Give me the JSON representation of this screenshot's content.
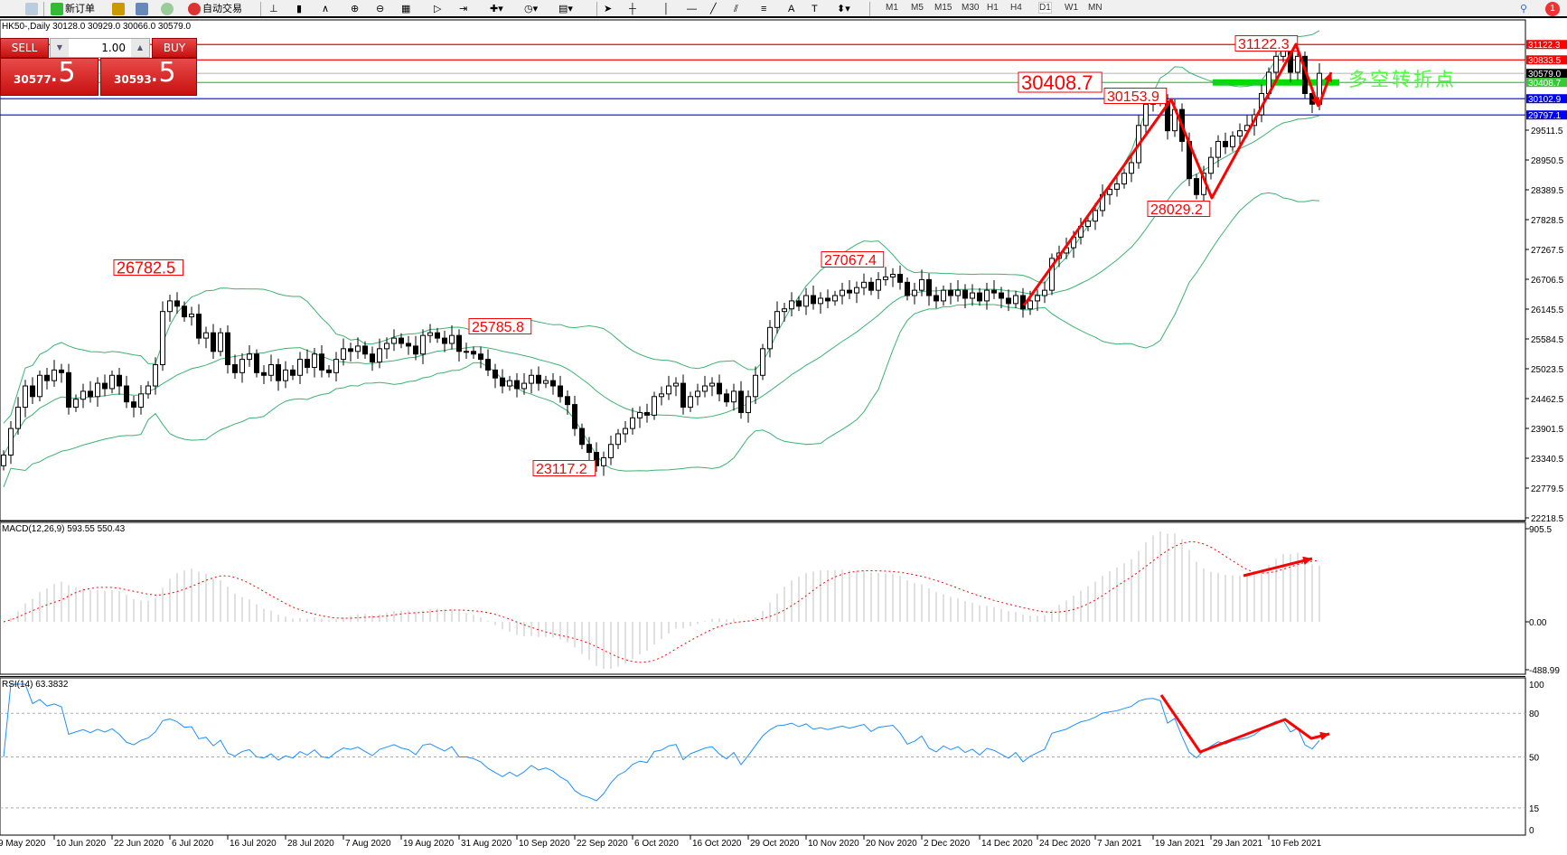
{
  "toolbar": {
    "new_order": "新订单",
    "auto_trading": "自动交易",
    "timeframes": [
      "M1",
      "M5",
      "M15",
      "M30",
      "H1",
      "H4",
      "D1",
      "W1",
      "MN"
    ],
    "active_timeframe": "D1",
    "notification_count": "1"
  },
  "chart_title": "HK50-,Daily  30128.0 30929.0 30066.0 30579.0",
  "trade_panel": {
    "sell_label": "SELL",
    "buy_label": "BUY",
    "lots": "1.00",
    "sell_price_main": "30577",
    "sell_price_frac": ".5",
    "buy_price_main": "30593",
    "buy_price_frac": ".5"
  },
  "price_axis": [
    "29511.5",
    "28950.5",
    "28389.5",
    "27828.5",
    "27267.5",
    "26706.5",
    "26145.5",
    "25584.5",
    "25023.5",
    "24462.5",
    "23901.5",
    "23340.5",
    "22779.5",
    "22218.5"
  ],
  "price_tags": [
    {
      "value": "31122.3",
      "color": "#ff0000"
    },
    {
      "value": "30833.5",
      "color": "#ff0000"
    },
    {
      "value": "30579.0",
      "color": "#000000"
    },
    {
      "value": "30408.7",
      "color": "#33cc33"
    },
    {
      "value": "30102.9",
      "color": "#0000ff"
    },
    {
      "value": "29797.1",
      "color": "#0000ff"
    }
  ],
  "annotations": [
    "26782.5",
    "25785.8",
    "23117.2",
    "27067.4",
    "30408.7",
    "30153.9",
    "28029.2",
    "31122.3"
  ],
  "turning_point_text": "多空转折点",
  "macd": {
    "label": "MACD(12,26,9) 593.55 550.43",
    "axis": [
      "905.5",
      "0.00",
      "-488.99"
    ]
  },
  "rsi": {
    "label": "RSI(14) 63.3832",
    "axis": [
      "100",
      "80",
      "50",
      "15",
      "0"
    ],
    "levels": [
      80,
      50,
      15
    ]
  },
  "dates": [
    "9 May 2020",
    "10 Jun 2020",
    "22 Jun 2020",
    "6 Jul 2020",
    "16 Jul 2020",
    "28 Jul 2020",
    "7 Aug 2020",
    "19 Aug 2020",
    "31 Aug 2020",
    "10 Sep 2020",
    "22 Sep 2020",
    "6 Oct 2020",
    "16 Oct 2020",
    "29 Oct 2020",
    "10 Nov 2020",
    "20 Nov 2020",
    "2 Dec 2020",
    "14 Dec 2020",
    "24 Dec 2020",
    "7 Jan 2021",
    "19 Jan 2021",
    "29 Jan 2021",
    "10 Feb 2021"
  ],
  "colors": {
    "bands": "#3cb371",
    "macd_hist": "#c0c0c0",
    "macd_signal": "#ff0000",
    "rsi": "#1e90ff",
    "annotation": "#ff0000",
    "turning_bar": "#00dd00"
  },
  "chart_data": {
    "type": "candlestick",
    "symbol": "HK50-",
    "timeframe": "Daily",
    "ylim": [
      22218.5,
      31194.5
    ],
    "indicators": [
      "Bollinger Bands",
      "MACD(12,26,9)",
      "RSI(14)"
    ],
    "horizontal_lines": [
      31122.3,
      30833.5,
      30579.0,
      30408.7,
      30102.9,
      29797.1
    ],
    "close": [
      23400,
      23900,
      24300,
      24700,
      24500,
      24900,
      24800,
      25000,
      24950,
      24300,
      24450,
      24600,
      24500,
      24750,
      24650,
      24900,
      24700,
      24400,
      24300,
      24550,
      24700,
      25100,
      26100,
      26300,
      26200,
      26000,
      26050,
      25600,
      25700,
      25350,
      25700,
      25100,
      24950,
      25200,
      25300,
      24950,
      24900,
      25100,
      24800,
      25000,
      24900,
      25200,
      25050,
      25300,
      25000,
      24950,
      25200,
      25400,
      25350,
      25450,
      25300,
      25150,
      25400,
      25500,
      25600,
      25500,
      25450,
      25300,
      25650,
      25700,
      25600,
      25500,
      25650,
      25350,
      25350,
      25300,
      25200,
      25000,
      24850,
      24700,
      24800,
      24650,
      24750,
      24900,
      24750,
      24800,
      24700,
      24500,
      24350,
      23900,
      23600,
      23450,
      23200,
      23350,
      23600,
      23800,
      23900,
      24100,
      24200,
      24150,
      24500,
      24550,
      24700,
      24750,
      24300,
      24500,
      24600,
      24700,
      24750,
      24550,
      24400,
      24600,
      24200,
      24500,
      24900,
      25400,
      25800,
      26100,
      26150,
      26300,
      26200,
      26400,
      26250,
      26350,
      26300,
      26400,
      26500,
      26450,
      26550,
      26650,
      26500,
      26700,
      26750,
      26800,
      26650,
      26400,
      26500,
      26700,
      26400,
      26300,
      26500,
      26400,
      26500,
      26350,
      26450,
      26300,
      26500,
      26450,
      26350,
      26250,
      26400,
      26150,
      26300,
      26400,
      26500,
      27100,
      27200,
      27300,
      27500,
      27700,
      27800,
      28000,
      28300,
      28400,
      28500,
      28700,
      28900,
      29600,
      30000,
      30100,
      30050,
      29500,
      29900,
      29300,
      28600,
      28300,
      28700,
      29000,
      29300,
      29200,
      29400,
      29500,
      29600,
      29800,
      30200,
      30600,
      30900,
      31000,
      30600,
      30900,
      30200,
      30000,
      30580
    ]
  }
}
